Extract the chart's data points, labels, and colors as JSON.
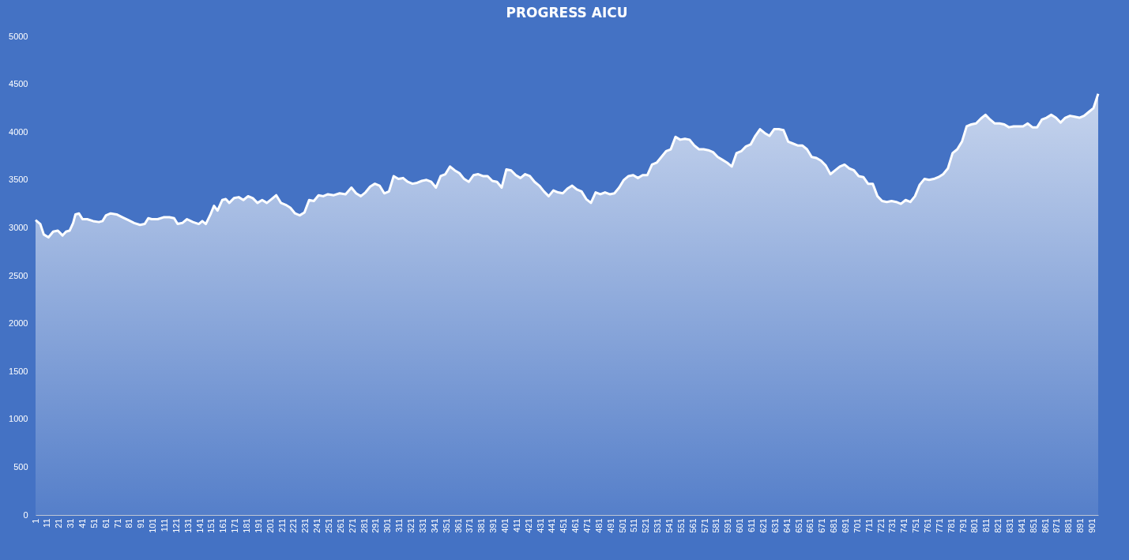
{
  "chart_data": {
    "type": "area",
    "title": "PROGRESS AICU",
    "color": "#ffffff",
    "x": [
      1,
      5,
      8,
      12,
      16,
      20,
      24,
      27,
      30,
      33,
      35,
      38,
      41,
      45,
      50,
      55,
      58,
      61,
      65,
      70,
      75,
      80,
      85,
      90,
      94,
      97,
      100,
      105,
      110,
      115,
      119,
      122,
      126,
      130,
      135,
      140,
      143,
      146,
      150,
      153,
      156,
      160,
      163,
      166,
      170,
      174,
      178,
      182,
      186,
      190,
      194,
      198,
      202,
      206,
      210,
      214,
      218,
      222,
      226,
      230,
      234,
      238,
      242,
      246,
      250,
      255,
      260,
      265,
      270,
      274,
      278,
      282,
      286,
      290,
      294,
      298,
      302,
      306,
      310,
      314,
      318,
      322,
      326,
      330,
      334,
      338,
      342,
      346,
      350,
      354,
      358,
      362,
      366,
      370,
      374,
      378,
      382,
      386,
      390,
      394,
      398,
      402,
      406,
      410,
      414,
      418,
      422,
      426,
      430,
      434,
      438,
      442,
      446,
      450,
      454,
      458,
      462,
      466,
      470,
      474,
      478,
      482,
      486,
      490,
      494,
      498,
      502,
      506,
      510,
      514,
      518,
      522,
      526,
      530,
      534,
      538,
      542,
      546,
      550,
      554,
      558,
      562,
      566,
      570,
      574,
      578,
      582,
      586,
      590,
      594,
      598,
      602,
      606,
      610,
      614,
      618,
      622,
      626,
      630,
      634,
      638,
      642,
      646,
      650,
      654,
      658,
      662,
      666,
      670,
      674,
      678,
      682,
      686,
      690,
      694,
      698,
      702,
      706,
      710,
      714,
      718,
      722,
      726,
      730,
      734,
      738,
      742,
      746,
      750,
      754,
      758,
      762,
      766,
      770,
      774,
      778,
      782,
      786,
      790,
      794,
      798,
      802,
      806,
      810,
      814,
      818,
      822,
      826,
      830,
      834,
      838,
      842,
      846,
      850,
      854,
      858,
      862,
      866,
      870,
      874,
      878,
      882,
      886,
      890,
      894,
      898,
      902,
      906
    ],
    "values": [
      3080,
      3040,
      2930,
      2900,
      2960,
      2970,
      2920,
      2960,
      2970,
      3050,
      3140,
      3150,
      3090,
      3090,
      3070,
      3060,
      3070,
      3130,
      3150,
      3140,
      3110,
      3080,
      3050,
      3030,
      3040,
      3100,
      3090,
      3090,
      3110,
      3110,
      3100,
      3040,
      3050,
      3090,
      3060,
      3040,
      3070,
      3040,
      3140,
      3230,
      3180,
      3290,
      3300,
      3260,
      3310,
      3320,
      3290,
      3330,
      3310,
      3260,
      3290,
      3260,
      3300,
      3340,
      3260,
      3240,
      3210,
      3150,
      3130,
      3160,
      3290,
      3280,
      3340,
      3330,
      3350,
      3340,
      3360,
      3350,
      3420,
      3360,
      3330,
      3370,
      3430,
      3460,
      3440,
      3360,
      3380,
      3540,
      3510,
      3520,
      3480,
      3460,
      3470,
      3490,
      3500,
      3480,
      3420,
      3540,
      3560,
      3640,
      3600,
      3570,
      3510,
      3480,
      3550,
      3560,
      3540,
      3540,
      3490,
      3480,
      3420,
      3610,
      3600,
      3550,
      3520,
      3560,
      3540,
      3480,
      3440,
      3380,
      3330,
      3390,
      3370,
      3360,
      3410,
      3440,
      3400,
      3380,
      3300,
      3260,
      3370,
      3350,
      3370,
      3350,
      3360,
      3420,
      3500,
      3540,
      3550,
      3520,
      3550,
      3550,
      3660,
      3680,
      3740,
      3800,
      3820,
      3950,
      3920,
      3930,
      3920,
      3860,
      3820,
      3820,
      3810,
      3790,
      3740,
      3710,
      3680,
      3640,
      3780,
      3800,
      3850,
      3870,
      3960,
      4030,
      3990,
      3960,
      4030,
      4030,
      4020,
      3900,
      3880,
      3860,
      3860,
      3820,
      3740,
      3730,
      3700,
      3650,
      3560,
      3600,
      3640,
      3660,
      3620,
      3600,
      3540,
      3530,
      3460,
      3460,
      3330,
      3280,
      3270,
      3280,
      3270,
      3250,
      3290,
      3270,
      3330,
      3450,
      3510,
      3500,
      3510,
      3530,
      3560,
      3620,
      3780,
      3820,
      3900,
      4060,
      4080,
      4090,
      4140,
      4180,
      4130,
      4090,
      4090,
      4080,
      4050,
      4060,
      4060,
      4060,
      4090,
      4050,
      4050,
      4130,
      4150,
      4180,
      4150,
      4100,
      4150,
      4170,
      4160,
      4150,
      4170,
      4210,
      4250,
      4400
    ],
    "xlim": [
      1,
      906
    ],
    "xticks": [
      1,
      11,
      21,
      31,
      41,
      51,
      61,
      71,
      81,
      91,
      101,
      111,
      121,
      131,
      141,
      151,
      161,
      171,
      181,
      191,
      201,
      211,
      221,
      231,
      241,
      251,
      261,
      271,
      281,
      291,
      301,
      311,
      321,
      331,
      341,
      351,
      361,
      371,
      381,
      391,
      401,
      411,
      421,
      431,
      441,
      451,
      461,
      471,
      481,
      491,
      501,
      511,
      521,
      531,
      541,
      551,
      561,
      571,
      581,
      591,
      601,
      611,
      621,
      631,
      641,
      651,
      661,
      671,
      681,
      691,
      701,
      711,
      721,
      731,
      741,
      751,
      761,
      771,
      781,
      791,
      801,
      811,
      821,
      831,
      841,
      851,
      861,
      871,
      881,
      891,
      901
    ],
    "ylim": [
      0,
      5000
    ],
    "yticks": [
      0,
      500,
      1000,
      1500,
      2000,
      2500,
      3000,
      3500,
      4000,
      4500,
      5000
    ]
  }
}
